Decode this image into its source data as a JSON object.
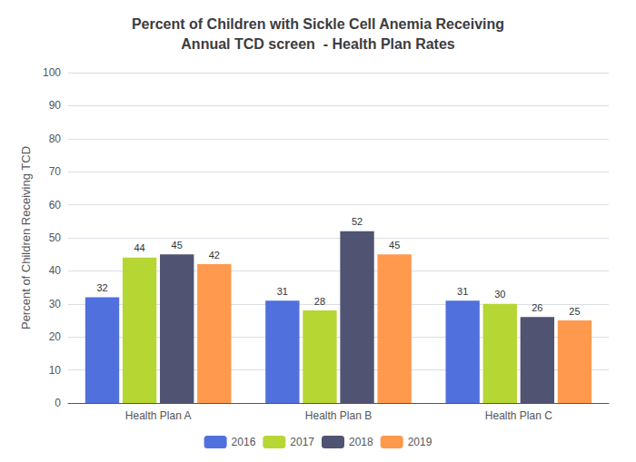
{
  "chart_data": {
    "type": "bar",
    "title": "Percent of Children with Sickle Cell Anemia Receiving\nAnnual TCD screen  - Health Plan Rates",
    "ylabel": "Percent of Children Receiving TCD",
    "categories": [
      "Health Plan A",
      "Health Plan B",
      "Health Plan C"
    ],
    "series": [
      {
        "name": "2016",
        "values": [
          32,
          31,
          31
        ]
      },
      {
        "name": "2017",
        "values": [
          44,
          28,
          30
        ]
      },
      {
        "name": "2018",
        "values": [
          45,
          52,
          26
        ]
      },
      {
        "name": "2019",
        "values": [
          42,
          45,
          25
        ]
      }
    ],
    "ylim": [
      0,
      100
    ],
    "yticks": [
      0,
      10,
      20,
      30,
      40,
      50,
      60,
      70,
      80,
      90,
      100
    ],
    "grid": true,
    "legend": "bottom",
    "data_labels": true
  }
}
